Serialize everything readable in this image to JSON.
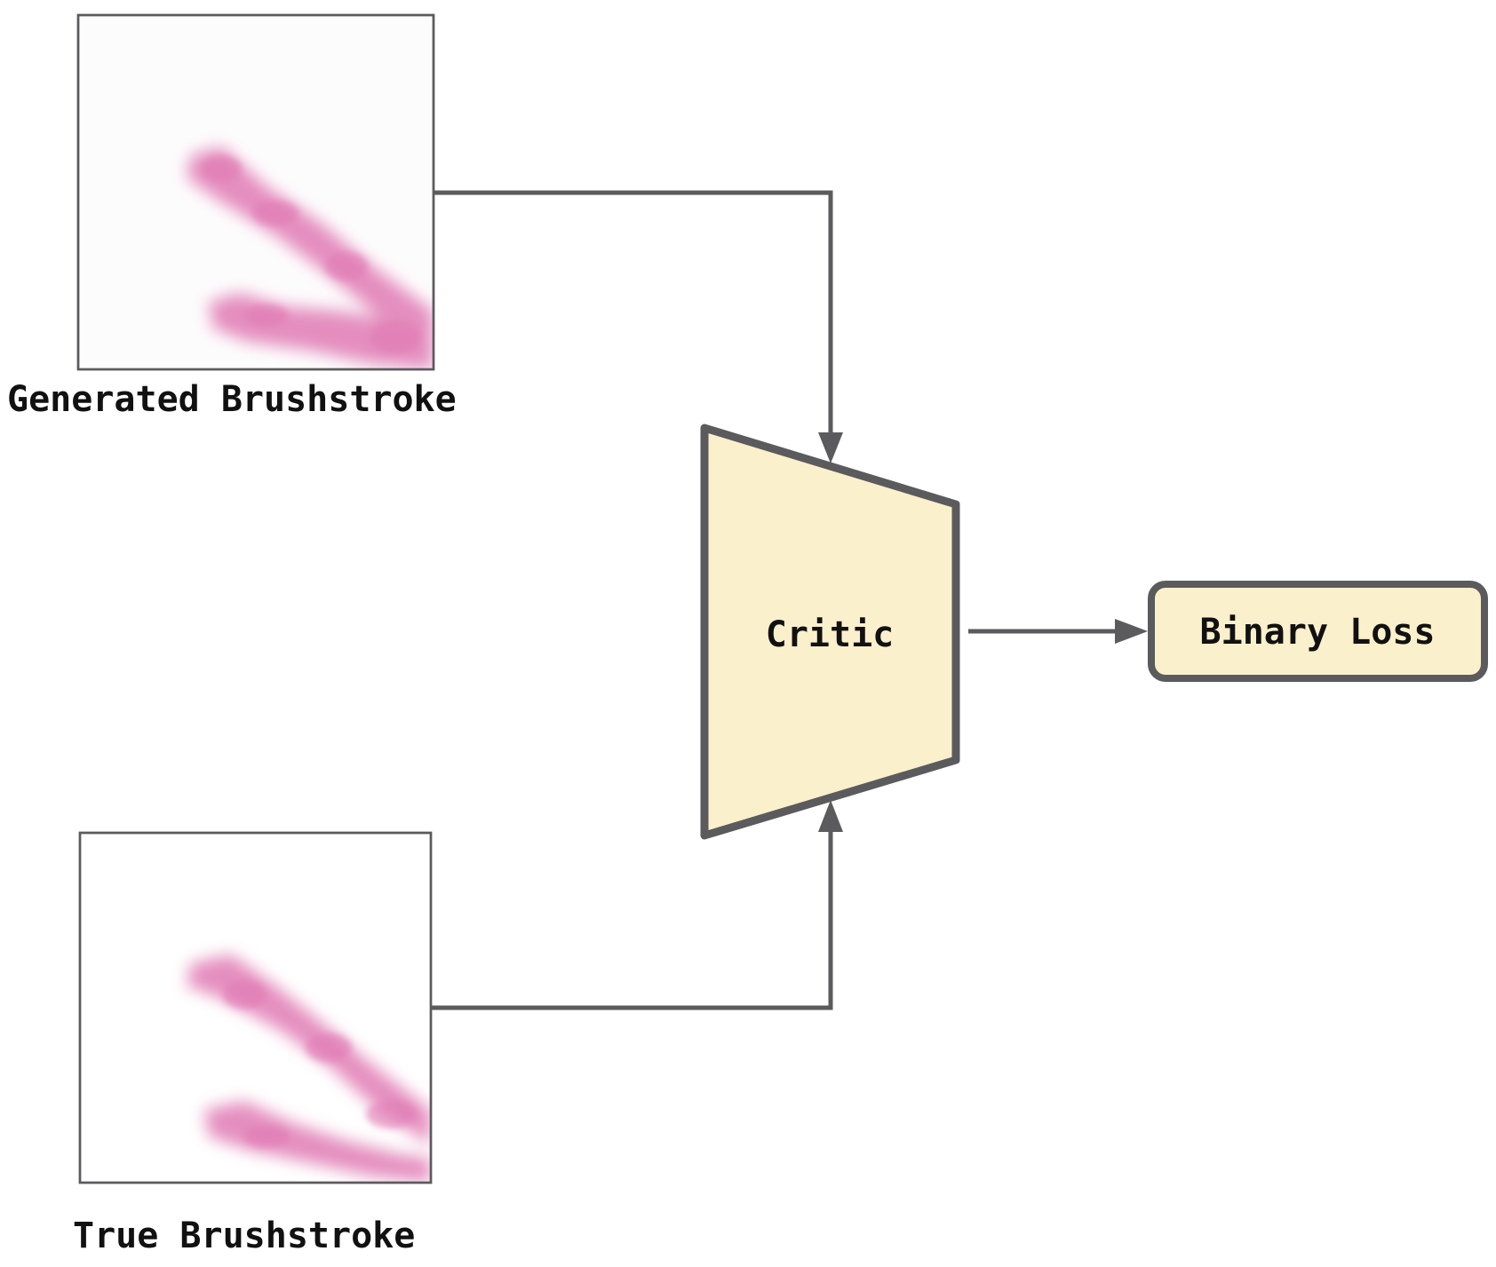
{
  "colors": {
    "stroke": "#5b5b5d",
    "critic_fill": "#fbf0cc",
    "loss_fill": "#fbf0cc",
    "brushstroke": "#e07ab4",
    "background": "#ffffff",
    "text": "#111111"
  },
  "nodes": {
    "generated": {
      "label": "Generated Brushstroke"
    },
    "true": {
      "label": "True Brushstroke"
    },
    "critic": {
      "label": "Critic"
    },
    "loss": {
      "label": "Binary Loss"
    }
  },
  "edges": [
    {
      "from": "generated",
      "to": "critic"
    },
    {
      "from": "true",
      "to": "critic"
    },
    {
      "from": "critic",
      "to": "loss"
    }
  ]
}
